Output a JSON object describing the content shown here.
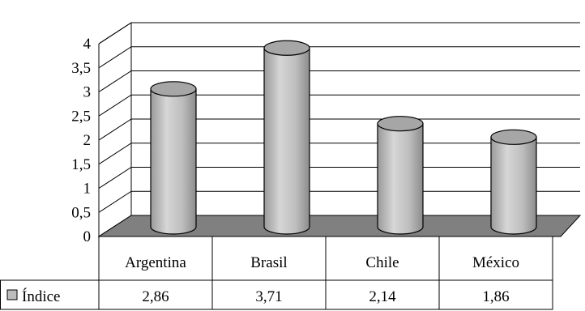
{
  "chart_data": {
    "type": "bar",
    "style": "3d-cylinder",
    "categories": [
      "Argentina",
      "Brasil",
      "Chile",
      "México"
    ],
    "series": [
      {
        "name": "Índice",
        "values": [
          2.86,
          3.71,
          2.14,
          1.86
        ],
        "value_labels": [
          "2,86",
          "3,71",
          "2,14",
          "1,86"
        ]
      }
    ],
    "y_ticks": [
      "0",
      "0,5",
      "1",
      "1,5",
      "2",
      "2,5",
      "3",
      "3,5",
      "4"
    ],
    "ylim": [
      0,
      4
    ],
    "grid": true,
    "legend": "data-table-left",
    "data_table": true,
    "colors": {
      "bar": "#bdbdbd",
      "floor": "#808080",
      "grid": "#000000"
    }
  }
}
